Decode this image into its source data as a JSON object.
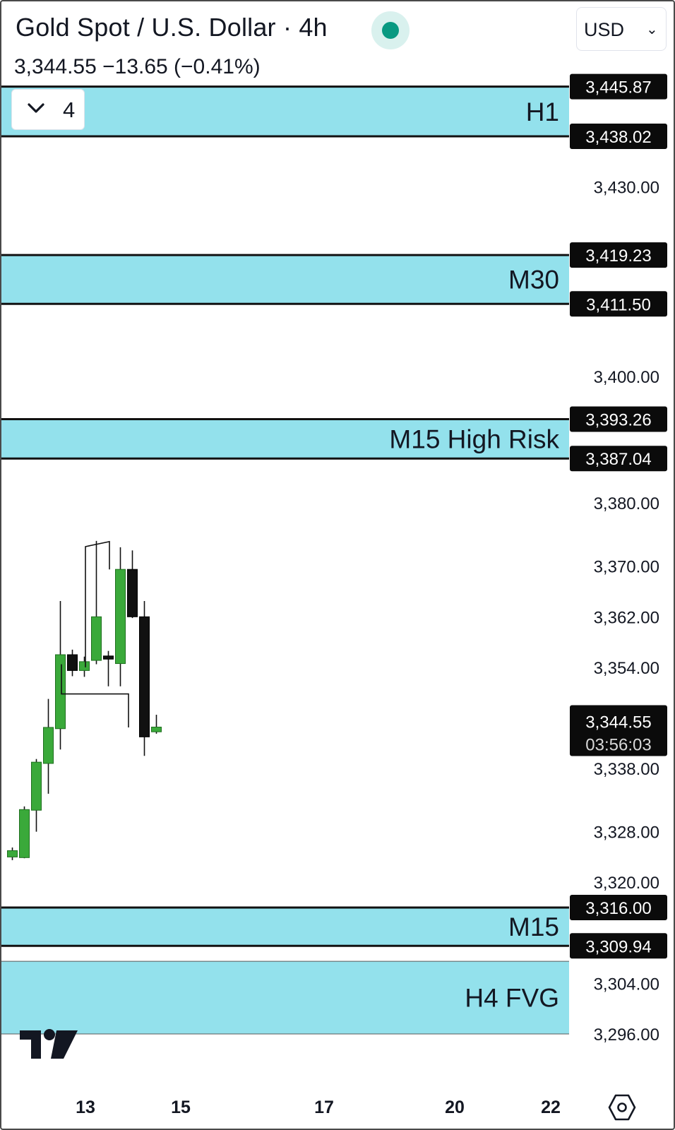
{
  "header": {
    "title": "Gold Spot / U.S. Dollar · 4h",
    "currency": "USD",
    "price_line": "3,344.55  −13.65 (−0.41%)",
    "collapse_count": "4"
  },
  "colors": {
    "zone_fill": "#93e1ec",
    "up_candle": "#3aa93a",
    "down_candle": "#111111",
    "live_dot": "#089981",
    "label_bg": "#0b0b0b"
  },
  "icons": {
    "live": "live-status-dot",
    "collapse": "chevron-down-icon",
    "currency": "chevron-down-icon",
    "logo": "tradingview-logo",
    "settings": "hexagon-settings-icon"
  },
  "chart_data": {
    "type": "candlestick",
    "title": "Gold Spot / U.S. Dollar · 4h",
    "ylim": [
      3290,
      3450
    ],
    "x_ticks": [
      "13",
      "15",
      "17",
      "20",
      "22"
    ],
    "y_ticks": [
      "3,430.00",
      "3,400.00",
      "3,380.00",
      "3,370.00",
      "3,362.00",
      "3,354.00",
      "3,338.00",
      "3,328.00",
      "3,320.00",
      "3,304.00",
      "3,296.00"
    ],
    "zones": [
      {
        "label": "H1",
        "top": 3445.87,
        "bottom": 3438.02,
        "top_label": "3,445.87",
        "bottom_label": "3,438.02"
      },
      {
        "label": "M30",
        "top": 3419.23,
        "bottom": 3411.5,
        "top_label": "3,419.23",
        "bottom_label": "3,411.50"
      },
      {
        "label": "M15 High Risk",
        "top": 3393.26,
        "bottom": 3387.04,
        "top_label": "3,393.26",
        "bottom_label": "3,387.04"
      },
      {
        "label": "M15",
        "top": 3316.0,
        "bottom": 3309.94,
        "top_label": "3,316.00",
        "bottom_label": "3,309.94"
      },
      {
        "label": "H4 FVG",
        "top": 3307.5,
        "bottom": 3296.0,
        "top_label": "",
        "bottom_label": ""
      }
    ],
    "current_price": {
      "value": 3344.55,
      "label": "3,344.55",
      "countdown": "03:56:03"
    },
    "candles": [
      {
        "o": 3324.0,
        "h": 3325.5,
        "l": 3323.5,
        "c": 3325.0
      },
      {
        "o": 3323.9,
        "h": 3332.0,
        "l": 3323.8,
        "c": 3331.5
      },
      {
        "o": 3331.4,
        "h": 3339.5,
        "l": 3328.0,
        "c": 3339.0
      },
      {
        "o": 3338.8,
        "h": 3349.0,
        "l": 3334.0,
        "c": 3344.5
      },
      {
        "o": 3344.3,
        "h": 3364.5,
        "l": 3341.0,
        "c": 3356.0
      },
      {
        "o": 3356.0,
        "h": 3356.8,
        "l": 3352.6,
        "c": 3353.5
      },
      {
        "o": 3353.5,
        "h": 3355.7,
        "l": 3352.5,
        "c": 3354.9
      },
      {
        "o": 3355.1,
        "h": 3374.0,
        "l": 3354.5,
        "c": 3362.0
      },
      {
        "o": 3355.8,
        "h": 3356.6,
        "l": 3351.0,
        "c": 3355.3
      },
      {
        "o": 3354.6,
        "h": 3373.0,
        "l": 3351.0,
        "c": 3369.5
      },
      {
        "o": 3369.5,
        "h": 3372.5,
        "l": 3361.8,
        "c": 3362.0
      },
      {
        "o": 3362.0,
        "h": 3364.5,
        "l": 3340.0,
        "c": 3343.0
      },
      {
        "o": 3343.8,
        "h": 3346.5,
        "l": 3343.5,
        "c": 3344.55
      }
    ]
  }
}
